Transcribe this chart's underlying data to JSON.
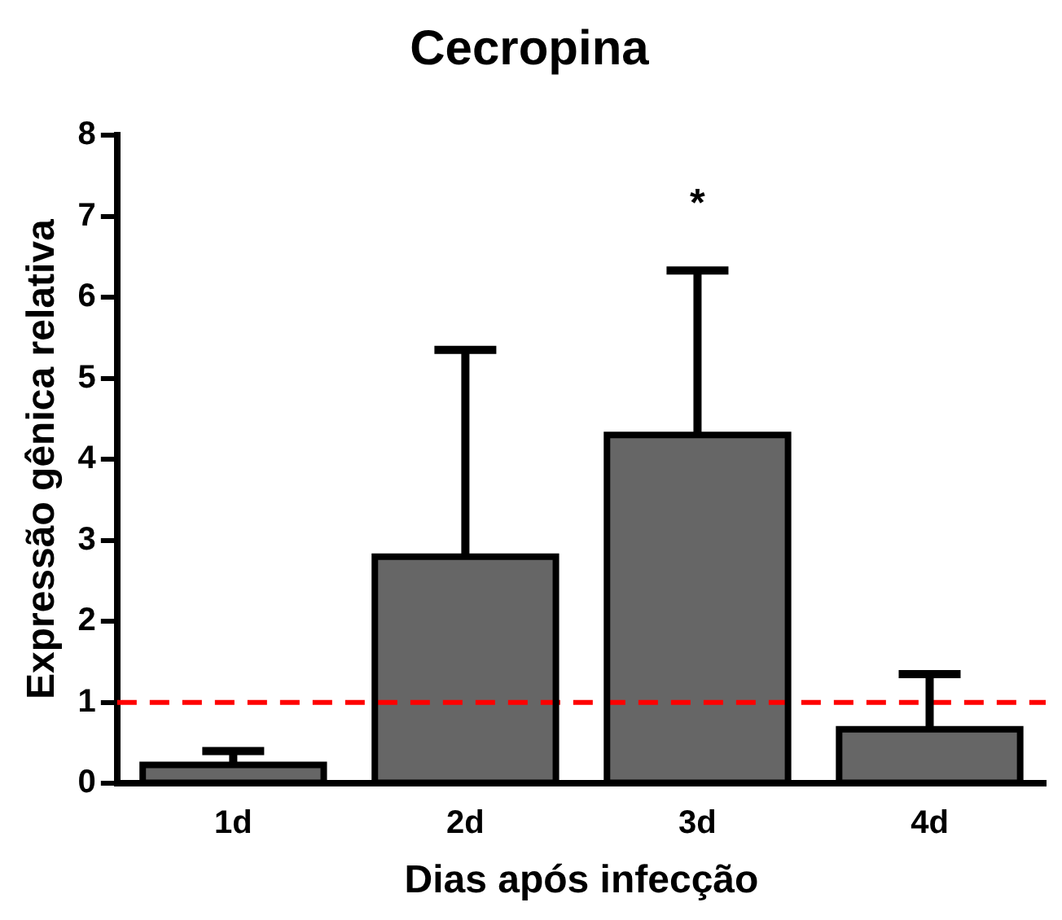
{
  "chart_data": {
    "type": "bar",
    "title": "Cecropina",
    "xlabel": "Dias após infecção",
    "ylabel": "Expressão gênica relativa",
    "categories": [
      "1d",
      "2d",
      "3d",
      "4d"
    ],
    "values": [
      0.23,
      2.8,
      4.3,
      0.67
    ],
    "errors": [
      [
        0.23,
        0.4
      ],
      [
        2.8,
        5.35
      ],
      [
        4.3,
        6.33
      ],
      [
        0.67,
        1.35
      ]
    ],
    "color": "#666666",
    "ylim": [
      0,
      8
    ],
    "yticks": [
      0,
      1,
      2,
      3,
      4,
      5,
      6,
      7,
      8
    ],
    "grid": false,
    "legend": false,
    "ref_lines": [
      {
        "axis": "y",
        "value": 1,
        "color": "#ff0000",
        "line_style": "dashed"
      }
    ],
    "annotations": [
      "*"
    ]
  }
}
